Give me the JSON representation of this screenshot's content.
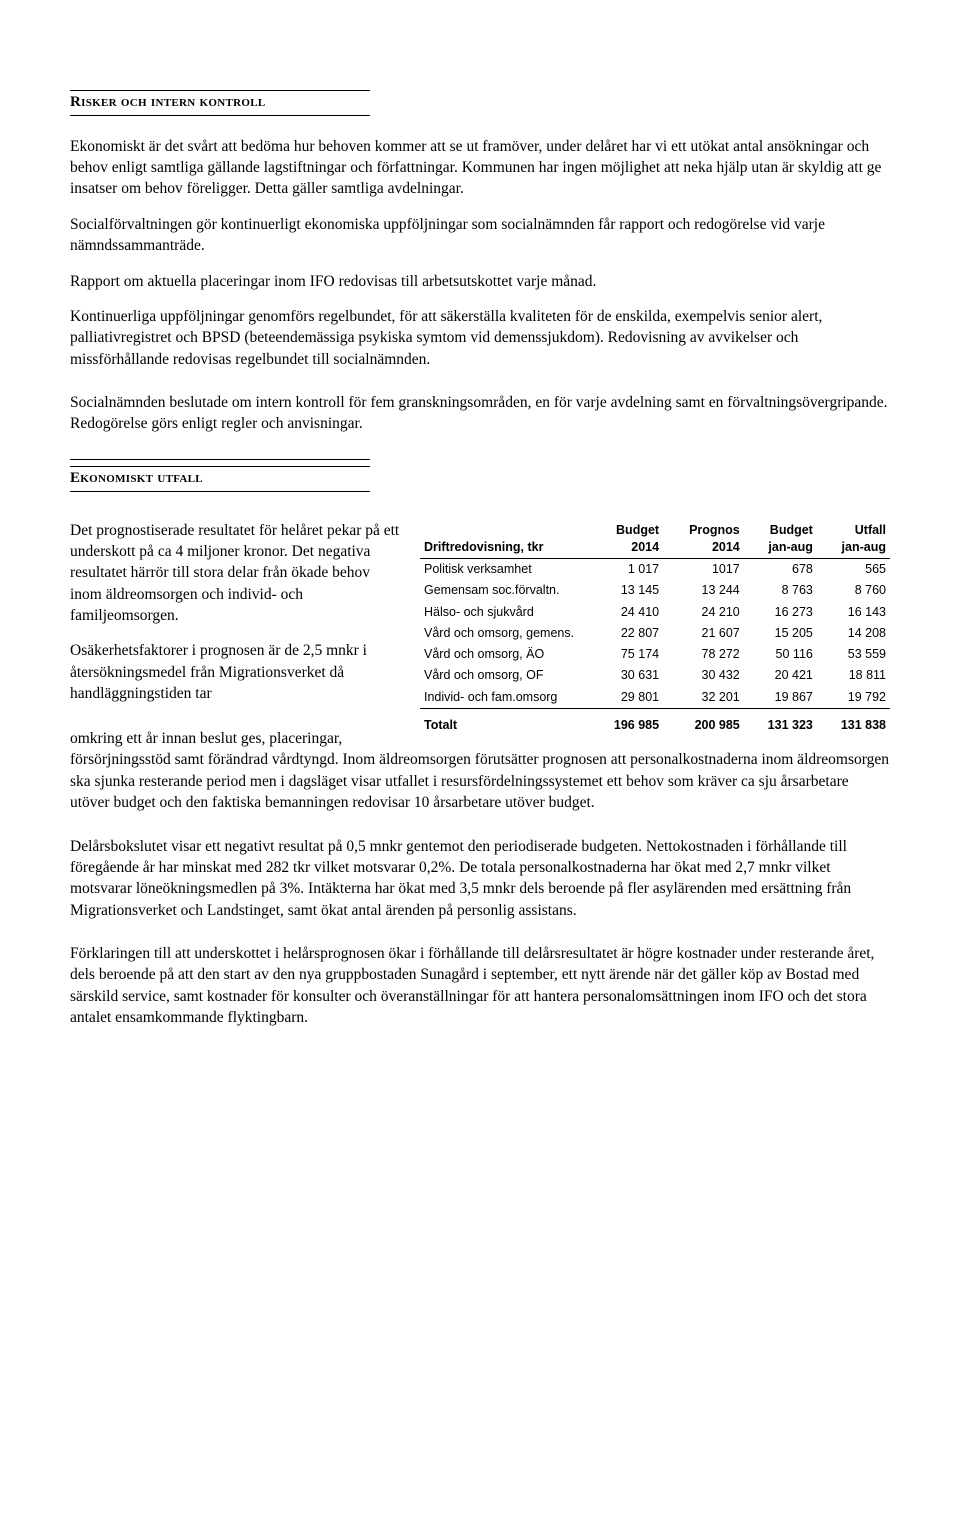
{
  "risker": {
    "title": "Risker och intern kontroll",
    "p1": "Ekonomiskt är det svårt att bedöma hur behoven kommer att se ut framöver, under delåret har vi ett utökat antal ansökningar och behov enligt samtliga gällande lagstiftningar och författningar. Kommunen har ingen möjlighet att neka hjälp utan är skyldig att ge insatser om behov föreligger. Detta gäller samtliga avdelningar.",
    "p2": "Socialförvaltningen gör kontinuerligt ekonomiska uppföljningar som socialnämnden får rapport och redogörelse vid varje nämndssammanträde.",
    "p3": "Rapport om aktuella placeringar inom IFO redovisas till arbetsutskottet varje månad.",
    "p4": "Kontinuerliga uppföljningar genomförs regelbundet, för att säkerställa kvaliteten för de enskilda, exempelvis senior alert, palliativregistret och BPSD (beteendemässiga psykiska symtom vid demenssjukdom). Redovisning av avvikelser och missförhållande redovisas regelbundet till socialnämnden.",
    "p5": "Socialnämnden beslutade om intern kontroll för fem granskningsområden, en för varje avdelning samt en förvaltningsövergripande. Redogörelse görs enligt regler och anvisningar."
  },
  "ekonomi": {
    "title": "Ekonomiskt utfall",
    "intro1": "Det prognostiserade resultatet för helåret pekar på ett underskott på ca 4 miljoner kronor. Det negativa resultatet härrör till stora delar från ökade behov inom äldreomsorgen och individ- och familjeomsorgen.",
    "intro2a": "Osäkerhetsfaktorer i prognosen är de 2,5 mnkr i återsökningsmedel från Migrationsverket då handläggningstiden tar ",
    "intro2b": "omkring ett år innan beslut ges, placeringar, försörjningsstöd samt förändrad vårdtyngd. Inom äldreomsorgen förutsätter prognosen att personalkostnaderna inom äldreomsorgen ska sjunka resterande period men i dagsläget visar utfallet i resursfördelningssystemet ett behov som kräver ca sju årsarbetare utöver budget och den faktiska bemanningen redovisar 10 årsarbetare utöver budget.",
    "p3": "Delårsbokslutet visar ett negativt resultat på 0,5 mnkr gentemot den periodiserade budgeten. Nettokostnaden i förhållande till föregående år har minskat med 282 tkr vilket motsvarar 0,2%. De totala personalkostnaderna har ökat med 2,7 mnkr vilket motsvarar löneökningsmedlen på 3%. Intäkterna har ökat med 3,5 mnkr dels beroende på fler asylärenden med ersättning från Migrationsverket och Landstinget, samt ökat antal ärenden på personlig assistans.",
    "p4": "Förklaringen till att underskottet i helårsprognosen ökar i förhållande till delårsresultatet är högre kostnader under resterande året, dels beroende på att den start av den nya gruppbostaden Sunagård i september, ett nytt ärende när det gäller köp av Bostad med särskild service, samt kostnader för konsulter och överanställningar för att hantera personalomsättningen inom IFO och det stora antalet ensamkommande flyktingbarn."
  },
  "table": {
    "head_col1": "Driftredovisning, tkr",
    "h1a": "Budget",
    "h1b": "2014",
    "h2a": "Prognos",
    "h2b": "2014",
    "h3a": "Budget",
    "h3b": "jan-aug",
    "h4a": "Utfall",
    "h4b": "jan-aug",
    "rows": [
      {
        "name": "Politisk verksamhet",
        "c1": "1 017",
        "c2": "1017",
        "c3": "678",
        "c4": "565"
      },
      {
        "name": "Gemensam soc.förvaltn.",
        "c1": "13 145",
        "c2": "13 244",
        "c3": "8 763",
        "c4": "8 760"
      },
      {
        "name": "Hälso- och sjukvård",
        "c1": "24 410",
        "c2": "24 210",
        "c3": "16 273",
        "c4": "16 143"
      },
      {
        "name": "Vård och omsorg, gemens.",
        "c1": "22 807",
        "c2": "21 607",
        "c3": "15 205",
        "c4": "14 208"
      },
      {
        "name": "Vård och omsorg, ÄO",
        "c1": "75 174",
        "c2": "78 272",
        "c3": "50 116",
        "c4": "53 559"
      },
      {
        "name": "Vård och omsorg, OF",
        "c1": "30 631",
        "c2": "30 432",
        "c3": "20 421",
        "c4": "18 811"
      },
      {
        "name": "Individ- och fam.omsorg",
        "c1": "29 801",
        "c2": "32 201",
        "c3": "19 867",
        "c4": "19 792"
      }
    ],
    "total": {
      "label": "Totalt",
      "c1": "196 985",
      "c2": "200 985",
      "c3": "131 323",
      "c4": "131 838"
    }
  }
}
